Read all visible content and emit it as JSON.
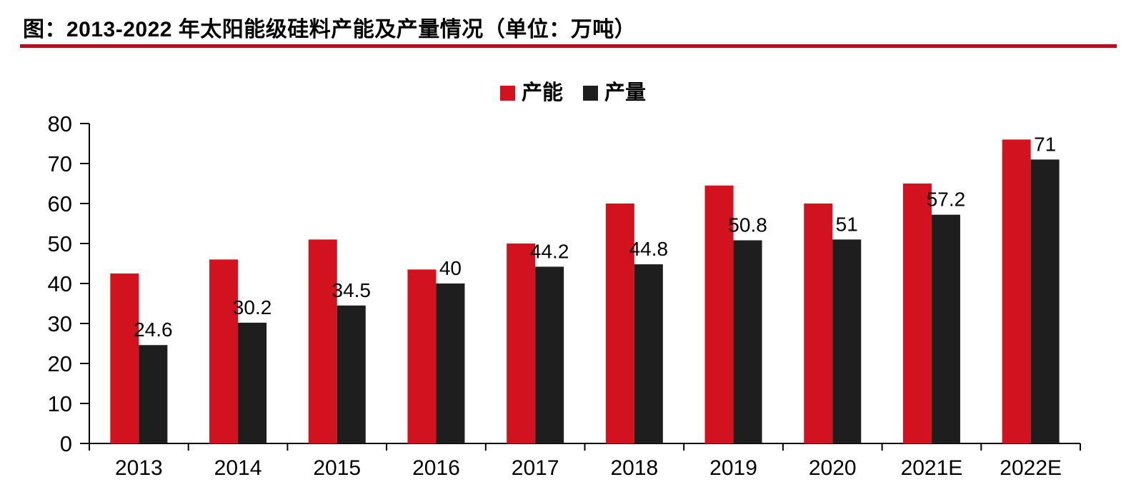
{
  "title": "图：2013-2022 年太阳能级硅料产能及产量情况（单位：万吨）",
  "colors": {
    "capacity": "#D2121E",
    "production": "#1F1E1E",
    "title_rule": "#B01218",
    "axis": "#000000",
    "text": "#000000",
    "background": "#FFFFFF"
  },
  "legend": {
    "position": "top-center",
    "items": [
      {
        "label": "产能",
        "color_key": "capacity"
      },
      {
        "label": "产量",
        "color_key": "production"
      }
    ]
  },
  "chart_data": {
    "type": "bar",
    "title": "2013-2022 年太阳能级硅料产能及产量情况",
    "unit": "万吨",
    "categories": [
      "2013",
      "2014",
      "2015",
      "2016",
      "2017",
      "2018",
      "2019",
      "2020",
      "2021E",
      "2022E"
    ],
    "series": [
      {
        "name": "产能",
        "color_key": "capacity",
        "values": [
          42.5,
          46,
          51,
          43.5,
          50,
          60,
          64.5,
          60,
          65,
          76
        ],
        "data_labels": []
      },
      {
        "name": "产量",
        "color_key": "production",
        "values": [
          24.6,
          30.2,
          34.5,
          40,
          44.2,
          44.8,
          50.8,
          51,
          57.2,
          71
        ],
        "data_labels": [
          "24.6",
          "30.2",
          "34.5",
          "40",
          "44.2",
          "44.8",
          "50.8",
          "51",
          "57.2",
          "71"
        ]
      }
    ],
    "xlabel": "",
    "ylabel": "",
    "ylim": [
      0,
      80
    ],
    "yticks": [
      0,
      10,
      20,
      30,
      40,
      50,
      60,
      70,
      80
    ],
    "grid": false,
    "legend_position": "top-center"
  }
}
